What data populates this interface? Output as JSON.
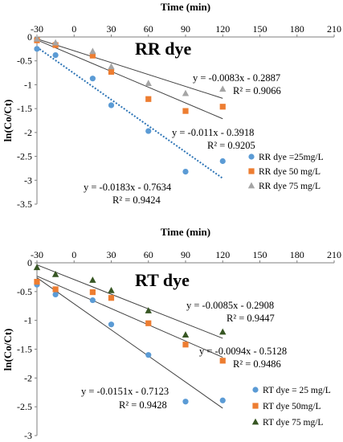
{
  "chart_data": [
    {
      "type": "scatter",
      "title": "RR dye",
      "xlabel": "Time (min)",
      "ylabel": "ln(Co/Ct)",
      "xlim": [
        -30,
        210
      ],
      "ylim": [
        -3.5,
        0
      ],
      "xticks": [
        -30,
        0,
        30,
        60,
        90,
        120,
        150,
        180,
        210
      ],
      "yticks": [
        0,
        -0.5,
        -1,
        -1.5,
        -2,
        -2.5,
        -3,
        -3.5
      ],
      "xtick_labels": [
        "-30",
        "0",
        "30",
        "60",
        "90",
        "120",
        "150",
        "180",
        "210"
      ],
      "ytick_labels": [
        "0",
        "-0.5",
        "-1",
        "-1.5",
        "-2",
        "-2.5",
        "-3",
        "-3.5"
      ],
      "legend_position": "bottom-right",
      "series": [
        {
          "name": "RR dye =25mg/L",
          "marker": "circle",
          "color": "#5b9bd5",
          "x": [
            -30,
            -15,
            15,
            30,
            60,
            90,
            120
          ],
          "y": [
            -0.25,
            -0.38,
            -0.87,
            -1.43,
            -1.97,
            -2.82,
            -2.6
          ],
          "trendline": {
            "slope": -0.0183,
            "intercept": -0.7634,
            "style": "dotted",
            "color": "#2e75b6",
            "x_range": [
              -30,
              120
            ],
            "equation": "y = -0.0183x - 0.7634",
            "r2": "R² = 0.9424"
          }
        },
        {
          "name": "RR dye 50 mg/L",
          "marker": "square",
          "color": "#ed7d31",
          "x": [
            -30,
            -15,
            15,
            30,
            60,
            90,
            120
          ],
          "y": [
            -0.07,
            -0.17,
            -0.39,
            -0.73,
            -1.3,
            -1.55,
            -1.46
          ],
          "trendline": {
            "slope": -0.011,
            "intercept": -0.3918,
            "style": "solid",
            "color": "#404040",
            "x_range": [
              -30,
              120
            ],
            "equation": "y = -0.011x - 0.3918",
            "r2": "R² = 0.9205"
          }
        },
        {
          "name": "RR dye 75 mg/L",
          "marker": "triangle",
          "color": "#a5a5a5",
          "x": [
            -30,
            -15,
            15,
            30,
            60,
            90,
            120
          ],
          "y": [
            -0.04,
            -0.12,
            -0.3,
            -0.62,
            -0.97,
            -1.18,
            -1.09
          ],
          "trendline": {
            "slope": -0.0083,
            "intercept": -0.2887,
            "style": "solid",
            "color": "#404040",
            "x_range": [
              -30,
              120
            ],
            "equation": "y = -0.0083x - 0.2887",
            "r2": "R² = 0.9066"
          }
        }
      ]
    },
    {
      "type": "scatter",
      "title": "RT dye",
      "xlabel": "Time (min)",
      "ylabel": "ln(Co/Ct)",
      "xlim": [
        -30,
        210
      ],
      "ylim": [
        -3,
        0
      ],
      "xticks": [
        -30,
        0,
        30,
        60,
        90,
        120,
        150,
        180,
        210
      ],
      "yticks": [
        0,
        -0.5,
        -1,
        -1.5,
        -2,
        -2.5,
        -3
      ],
      "xtick_labels": [
        "-30",
        "0",
        "30",
        "60",
        "90",
        "120",
        "150",
        "180",
        "210"
      ],
      "ytick_labels": [
        "0",
        "-0.5",
        "-1",
        "-1.5",
        "-2",
        "-2.5",
        "-3"
      ],
      "legend_position": "bottom-right",
      "series": [
        {
          "name": "RT dye = 25 mg/L",
          "marker": "circle",
          "color": "#5b9bd5",
          "x": [
            -30,
            -15,
            15,
            30,
            60,
            90,
            120
          ],
          "y": [
            -0.38,
            -0.55,
            -0.65,
            -1.07,
            -1.6,
            -2.41,
            -2.39
          ],
          "trendline": {
            "slope": -0.0151,
            "intercept": -0.7123,
            "style": "solid",
            "color": "#404040",
            "x_range": [
              -30,
              120
            ],
            "equation": "y = -0.0151x - 0.7123",
            "r2": "R² = 0.9428"
          }
        },
        {
          "name": "RT dye  50mg/L",
          "marker": "square",
          "color": "#ed7d31",
          "x": [
            -30,
            -15,
            15,
            30,
            60,
            90,
            120
          ],
          "y": [
            -0.33,
            -0.46,
            -0.51,
            -0.61,
            -1.05,
            -1.42,
            -1.7
          ],
          "trendline": {
            "slope": -0.0094,
            "intercept": -0.5128,
            "style": "solid",
            "color": "#404040",
            "x_range": [
              -30,
              120
            ],
            "equation": "y = -0.0094x - 0.5128",
            "r2": "R² = 0.9486"
          }
        },
        {
          "name": "RT dye 75 mg/L",
          "marker": "triangle",
          "color": "#375623",
          "x": [
            -30,
            -15,
            15,
            30,
            60,
            90,
            120
          ],
          "y": [
            -0.08,
            -0.2,
            -0.3,
            -0.48,
            -0.83,
            -1.25,
            -1.2
          ],
          "trendline": {
            "slope": -0.0085,
            "intercept": -0.2908,
            "style": "solid",
            "color": "#404040",
            "x_range": [
              -30,
              120
            ],
            "equation": "y = -0.0085x - 0.2908",
            "r2": "R² = 0.9447"
          }
        }
      ]
    }
  ]
}
